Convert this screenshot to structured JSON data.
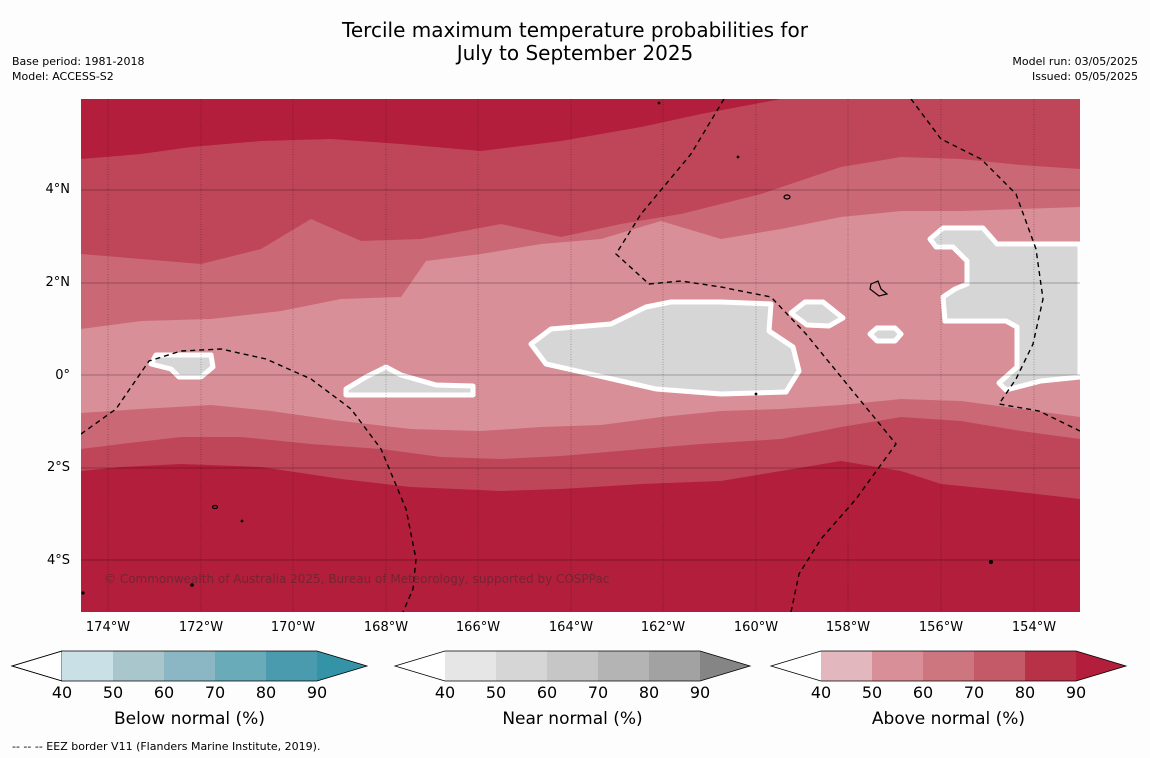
{
  "header": {
    "title_line1": "Tercile maximum temperature probabilities for",
    "title_line2": "July to September 2025",
    "base_period": "Base period: 1981-2018",
    "model": "Model: ACCESS-S2",
    "model_run": "Model run: 03/05/2025",
    "issued": "Issued: 05/05/2025"
  },
  "map": {
    "copyright": "© Commonwealth of Australia 2025, Bureau of Meteorology, supported by COSPPac",
    "lat_labels": [
      "4°N",
      "2°N",
      "0°",
      "2°S",
      "4°S"
    ],
    "lon_labels": [
      "174°W",
      "172°W",
      "170°W",
      "168°W",
      "166°W",
      "164°W",
      "162°W",
      "160°W",
      "158°W",
      "156°W",
      "154°W"
    ],
    "colors": {
      "above_50": "#d98f97",
      "above_60": "#cb6876",
      "above_70": "#bf4658",
      "above_80": "#b21e3b",
      "near": "#d6d6d6",
      "contour_white": "#ffffff"
    }
  },
  "colorbars": [
    {
      "title": "Below normal (%)",
      "ticks": [
        "40",
        "50",
        "60",
        "70",
        "80",
        "90"
      ],
      "colors": [
        "#ffffff",
        "#c9e0e7",
        "#a8c6cc",
        "#8bb6c3",
        "#6aabba",
        "#4a9bad",
        "#3593a8"
      ]
    },
    {
      "title": "Near normal (%)",
      "ticks": [
        "40",
        "50",
        "60",
        "70",
        "80",
        "90"
      ],
      "colors": [
        "#ffffff",
        "#e6e6e6",
        "#d6d6d6",
        "#c6c6c6",
        "#b4b4b4",
        "#a2a2a2",
        "#858585"
      ]
    },
    {
      "title": "Above normal (%)",
      "ticks": [
        "40",
        "50",
        "60",
        "70",
        "80",
        "90"
      ],
      "colors": [
        "#ffffff",
        "#e2b7bd",
        "#d98f97",
        "#cd7680",
        "#c45a67",
        "#b83247",
        "#b21e3b"
      ]
    }
  ],
  "footnote": "--  --  -- EEZ border V11 (Flanders Marine Institute, 2019)."
}
